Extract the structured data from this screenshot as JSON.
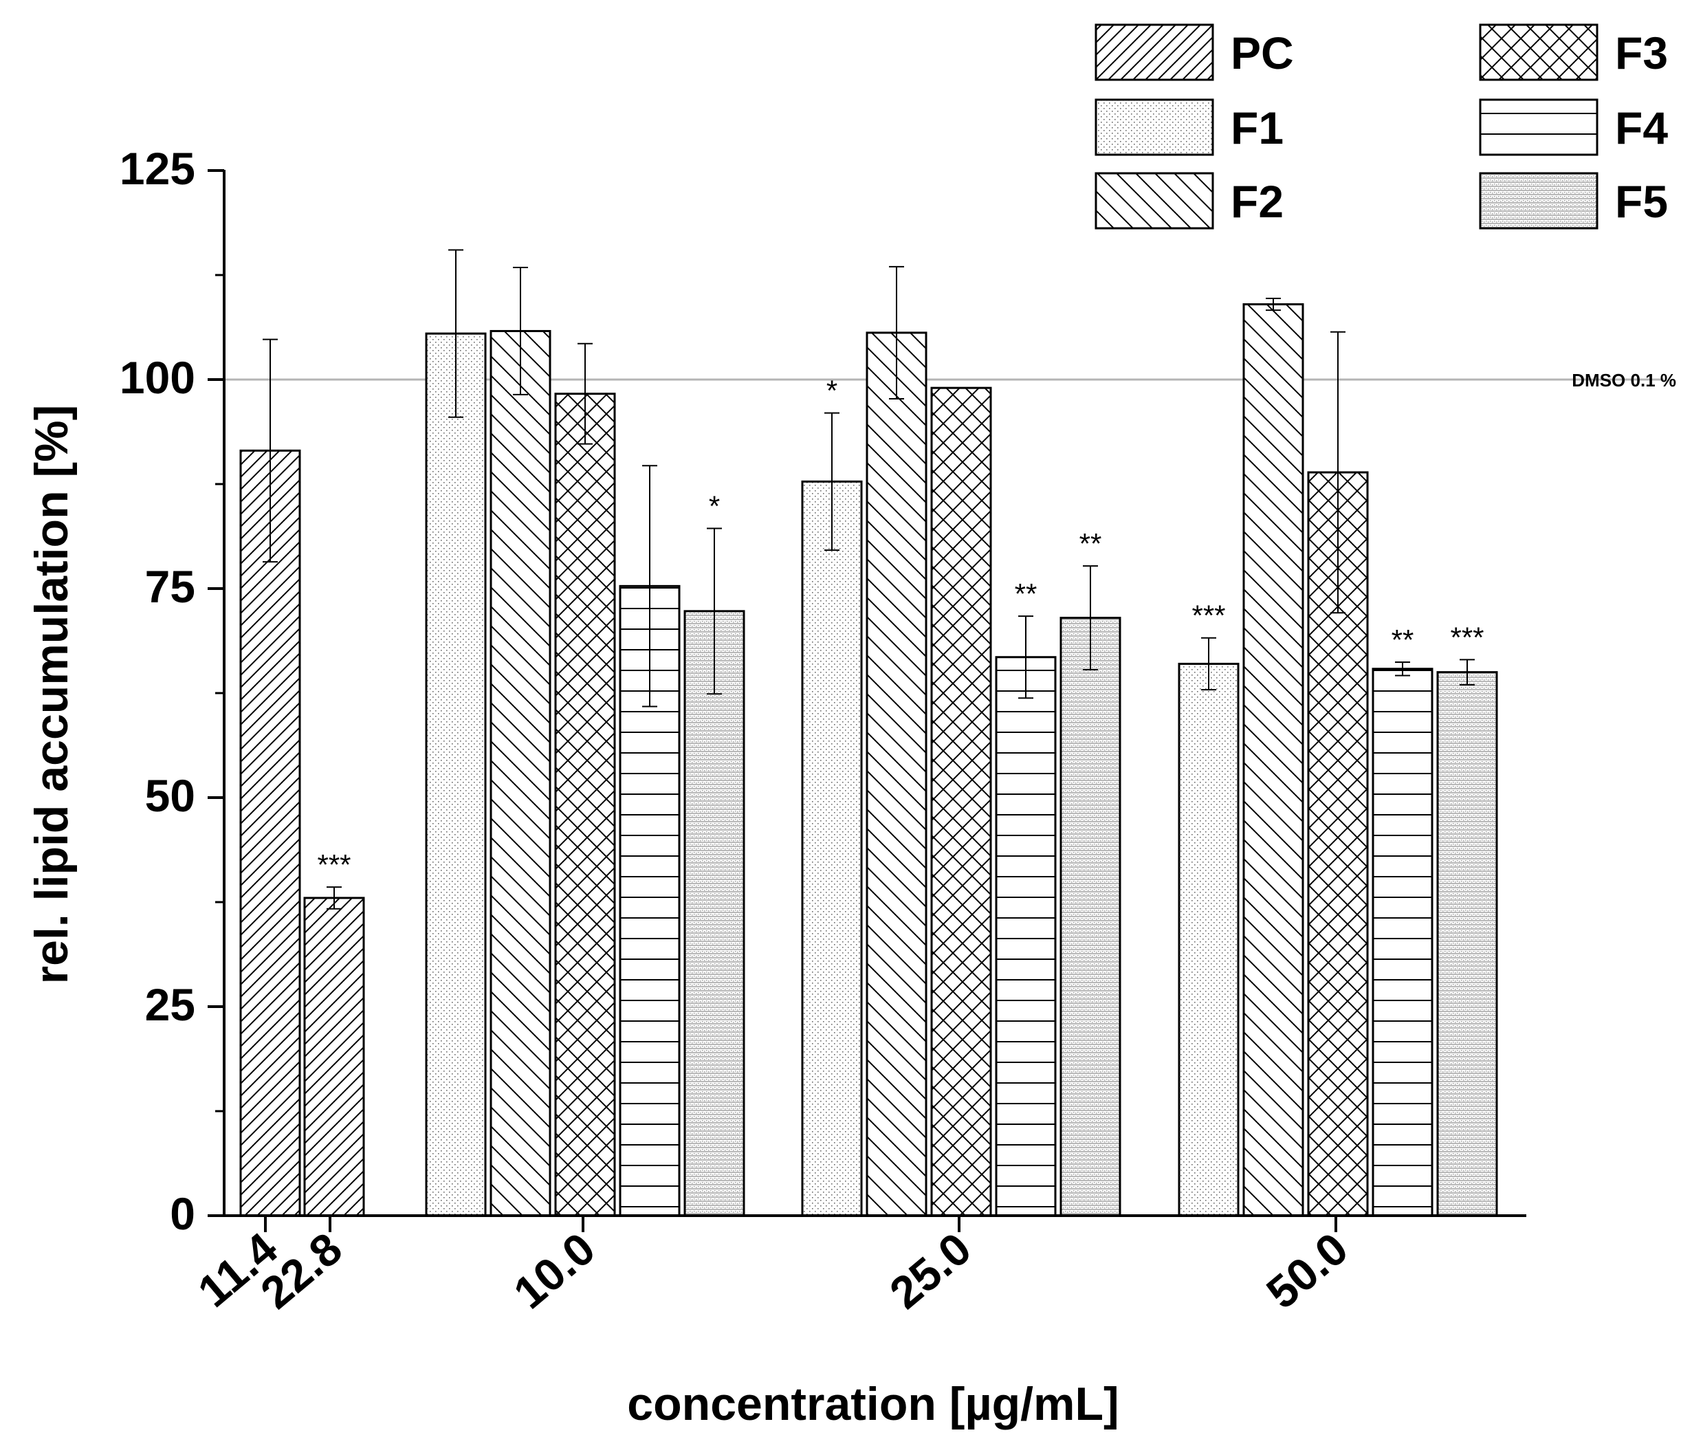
{
  "chart_data": {
    "type": "bar",
    "ylabel": "rel. lipid accumulation [%]",
    "xlabel": "concentration [µg/mL]",
    "ylim": [
      0,
      125
    ],
    "yticks": [
      0,
      25,
      50,
      75,
      100,
      125
    ],
    "reference_line": {
      "value": 100,
      "label": "DMSO 0.1 %"
    },
    "legend": [
      "PC",
      "F1",
      "F2",
      "F3",
      "F4",
      "F5"
    ],
    "groups": [
      {
        "label": "11.4",
        "bars": [
          {
            "series": "PC",
            "value": 91.5,
            "error": 13.3,
            "sig": ""
          }
        ]
      },
      {
        "label": "22.8",
        "bars": [
          {
            "series": "PC",
            "value": 38.0,
            "error": 1.3,
            "sig": "***"
          }
        ]
      },
      {
        "label": "10.0",
        "bars": [
          {
            "series": "F1",
            "value": 105.5,
            "error": 10.0,
            "sig": ""
          },
          {
            "series": "F2",
            "value": 105.8,
            "error": 7.6,
            "sig": ""
          },
          {
            "series": "F3",
            "value": 98.3,
            "error": 6.0,
            "sig": ""
          },
          {
            "series": "F4",
            "value": 75.3,
            "error": 14.4,
            "sig": ""
          },
          {
            "series": "F5",
            "value": 72.3,
            "error": 9.9,
            "sig": "*"
          }
        ]
      },
      {
        "label": "25.0",
        "bars": [
          {
            "series": "F1",
            "value": 87.8,
            "error": 8.2,
            "sig": "*"
          },
          {
            "series": "F2",
            "value": 105.6,
            "error": 7.9,
            "sig": ""
          },
          {
            "series": "F3",
            "value": 99.0,
            "error": 0.0,
            "sig": ""
          },
          {
            "series": "F4",
            "value": 66.8,
            "error": 4.9,
            "sig": "**"
          },
          {
            "series": "F5",
            "value": 71.5,
            "error": 6.2,
            "sig": "**"
          }
        ]
      },
      {
        "label": "50.0",
        "bars": [
          {
            "series": "F1",
            "value": 66.0,
            "error": 3.1,
            "sig": "***"
          },
          {
            "series": "F2",
            "value": 109.0,
            "error": 0.7,
            "sig": ""
          },
          {
            "series": "F3",
            "value": 88.9,
            "error": 16.8,
            "sig": ""
          },
          {
            "series": "F4",
            "value": 65.4,
            "error": 0.8,
            "sig": "**"
          },
          {
            "series": "F5",
            "value": 65.0,
            "error": 1.5,
            "sig": "***"
          }
        ]
      }
    ]
  }
}
